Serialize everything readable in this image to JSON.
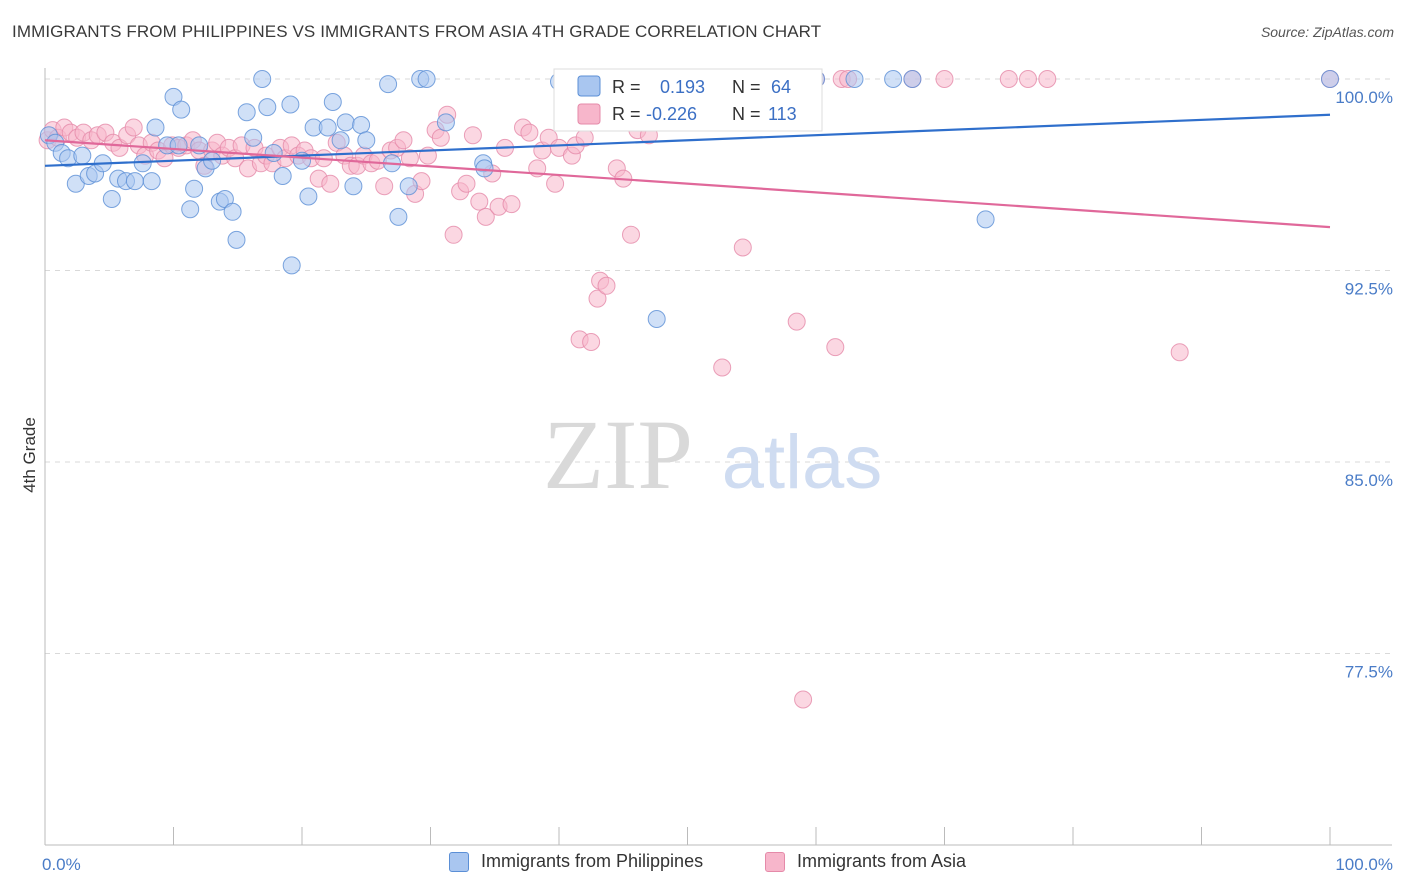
{
  "title": "IMMIGRANTS FROM PHILIPPINES VS IMMIGRANTS FROM ASIA 4TH GRADE CORRELATION CHART",
  "source": "Source: ZipAtlas.com",
  "watermark": {
    "zip": "ZIP",
    "atlas": "atlas"
  },
  "colors": {
    "blue_fill": "#a9c6f0",
    "blue_stroke": "#5b8fd6",
    "blue_line": "#2f6fcc",
    "pink_fill": "#f7b6cb",
    "pink_stroke": "#e58aa9",
    "pink_line": "#e0689a",
    "grid": "#d9d9d9",
    "tick_text": "#4a7cc7"
  },
  "legend": {
    "row1": {
      "r_label": "R =",
      "r_value": "0.193",
      "n_label": "N =",
      "n_value": "64"
    },
    "row2": {
      "r_label": "R =",
      "r_value": "-0.226",
      "n_label": "N =",
      "n_value": "113"
    }
  },
  "bottom_legend": {
    "blue": "Immigrants from Philippines",
    "pink": "Immigrants from Asia"
  },
  "chart_data": {
    "type": "scatter",
    "title": "IMMIGRANTS FROM PHILIPPINES VS IMMIGRANTS FROM ASIA 4TH GRADE CORRELATION CHART",
    "xlabel": "",
    "ylabel": "4th Grade",
    "xlim": [
      0,
      100
    ],
    "ylim": [
      70.0,
      100.7
    ],
    "x_tick_labels": [
      "0.0%",
      "100.0%"
    ],
    "y_ticks": [
      77.5,
      85.0,
      92.5,
      100.0
    ],
    "y_tick_labels": [
      "77.5%",
      "85.0%",
      "92.5%",
      "100.0%"
    ],
    "grid": "horizontal dashed",
    "legend_position": "top-center",
    "series": [
      {
        "name": "Immigrants from Philippines",
        "color": "#a9c6f0",
        "trend": {
          "x": [
            0,
            100
          ],
          "y": [
            96.6,
            98.6
          ]
        },
        "points": [
          [
            0.3,
            97.8
          ],
          [
            0.8,
            97.5
          ],
          [
            1.3,
            97.1
          ],
          [
            1.8,
            96.9
          ],
          [
            2.4,
            95.9
          ],
          [
            2.9,
            97.0
          ],
          [
            3.4,
            96.2
          ],
          [
            3.9,
            96.3
          ],
          [
            4.5,
            96.7
          ],
          [
            5.2,
            95.3
          ],
          [
            5.7,
            96.1
          ],
          [
            6.3,
            96.0
          ],
          [
            7.0,
            96.0
          ],
          [
            7.6,
            96.7
          ],
          [
            8.3,
            96.0
          ],
          [
            8.6,
            98.1
          ],
          [
            9.5,
            97.4
          ],
          [
            10.0,
            99.3
          ],
          [
            10.4,
            97.4
          ],
          [
            10.6,
            98.8
          ],
          [
            11.3,
            94.9
          ],
          [
            11.6,
            95.7
          ],
          [
            12.0,
            97.4
          ],
          [
            12.5,
            96.5
          ],
          [
            13.0,
            96.8
          ],
          [
            13.6,
            95.2
          ],
          [
            14.0,
            95.3
          ],
          [
            14.6,
            94.8
          ],
          [
            14.9,
            93.7
          ],
          [
            15.7,
            98.7
          ],
          [
            16.2,
            97.7
          ],
          [
            16.9,
            100.0
          ],
          [
            17.3,
            98.9
          ],
          [
            17.8,
            97.1
          ],
          [
            18.5,
            96.2
          ],
          [
            19.1,
            99.0
          ],
          [
            19.2,
            92.7
          ],
          [
            20.0,
            96.8
          ],
          [
            20.5,
            95.4
          ],
          [
            20.9,
            98.1
          ],
          [
            22.0,
            98.1
          ],
          [
            22.4,
            99.1
          ],
          [
            23.0,
            97.6
          ],
          [
            23.4,
            98.3
          ],
          [
            24.0,
            95.8
          ],
          [
            24.6,
            98.2
          ],
          [
            25.0,
            97.6
          ],
          [
            26.7,
            99.8
          ],
          [
            27.0,
            96.7
          ],
          [
            27.5,
            94.6
          ],
          [
            28.3,
            95.8
          ],
          [
            29.2,
            100.0
          ],
          [
            29.7,
            100.0
          ],
          [
            31.2,
            98.3
          ],
          [
            34.1,
            96.7
          ],
          [
            34.2,
            96.5
          ],
          [
            47.6,
            90.6
          ],
          [
            60.0,
            100.0
          ],
          [
            63.0,
            100.0
          ],
          [
            66.0,
            100.0
          ],
          [
            67.5,
            100.0
          ],
          [
            73.2,
            94.5
          ],
          [
            100.0,
            100.0
          ],
          [
            40.0,
            99.9
          ]
        ]
      },
      {
        "name": "Immigrants from Asia",
        "color": "#f7b6cb",
        "trend": {
          "x": [
            0,
            100
          ],
          "y": [
            97.6,
            94.2
          ]
        },
        "points": [
          [
            0.2,
            97.6
          ],
          [
            0.6,
            98.0
          ],
          [
            1.0,
            97.7
          ],
          [
            1.5,
            98.1
          ],
          [
            2.0,
            97.9
          ],
          [
            2.5,
            97.7
          ],
          [
            3.0,
            97.9
          ],
          [
            3.6,
            97.6
          ],
          [
            4.1,
            97.8
          ],
          [
            4.7,
            97.9
          ],
          [
            5.3,
            97.5
          ],
          [
            5.8,
            97.3
          ],
          [
            6.4,
            97.8
          ],
          [
            6.9,
            98.1
          ],
          [
            7.3,
            97.4
          ],
          [
            7.8,
            97.0
          ],
          [
            8.3,
            97.5
          ],
          [
            8.8,
            97.2
          ],
          [
            9.3,
            96.9
          ],
          [
            9.9,
            97.4
          ],
          [
            10.4,
            97.3
          ],
          [
            11.0,
            97.4
          ],
          [
            11.5,
            97.6
          ],
          [
            12.0,
            97.2
          ],
          [
            12.4,
            96.6
          ],
          [
            13.0,
            97.2
          ],
          [
            13.4,
            97.5
          ],
          [
            13.8,
            97.0
          ],
          [
            14.3,
            97.3
          ],
          [
            14.8,
            96.9
          ],
          [
            15.3,
            97.4
          ],
          [
            15.8,
            96.5
          ],
          [
            16.3,
            97.3
          ],
          [
            16.8,
            96.7
          ],
          [
            17.2,
            97.0
          ],
          [
            17.7,
            96.7
          ],
          [
            18.3,
            97.3
          ],
          [
            18.7,
            96.9
          ],
          [
            19.2,
            97.4
          ],
          [
            19.7,
            97.0
          ],
          [
            20.2,
            97.2
          ],
          [
            20.7,
            96.9
          ],
          [
            21.3,
            96.1
          ],
          [
            21.7,
            96.9
          ],
          [
            22.2,
            95.9
          ],
          [
            22.7,
            97.5
          ],
          [
            23.3,
            97.0
          ],
          [
            23.8,
            96.6
          ],
          [
            24.3,
            96.6
          ],
          [
            24.8,
            97.0
          ],
          [
            25.4,
            96.7
          ],
          [
            25.9,
            96.8
          ],
          [
            26.4,
            95.8
          ],
          [
            26.9,
            97.2
          ],
          [
            27.4,
            97.3
          ],
          [
            27.9,
            97.6
          ],
          [
            28.4,
            96.9
          ],
          [
            28.8,
            95.5
          ],
          [
            29.3,
            96.0
          ],
          [
            29.8,
            97.0
          ],
          [
            30.4,
            98.0
          ],
          [
            30.8,
            97.7
          ],
          [
            31.3,
            98.6
          ],
          [
            31.8,
            93.9
          ],
          [
            32.3,
            95.6
          ],
          [
            32.8,
            95.9
          ],
          [
            33.3,
            97.8
          ],
          [
            33.8,
            95.2
          ],
          [
            34.3,
            94.6
          ],
          [
            34.8,
            96.3
          ],
          [
            35.3,
            95.0
          ],
          [
            35.8,
            97.3
          ],
          [
            36.3,
            95.1
          ],
          [
            37.2,
            98.1
          ],
          [
            37.7,
            97.9
          ],
          [
            38.3,
            96.5
          ],
          [
            38.7,
            97.2
          ],
          [
            39.2,
            97.7
          ],
          [
            39.7,
            95.9
          ],
          [
            40.0,
            97.3
          ],
          [
            41.0,
            97.0
          ],
          [
            41.3,
            97.4
          ],
          [
            41.6,
            89.8
          ],
          [
            42.0,
            97.7
          ],
          [
            42.5,
            89.7
          ],
          [
            43.0,
            91.4
          ],
          [
            43.2,
            92.1
          ],
          [
            43.7,
            91.9
          ],
          [
            44.5,
            96.5
          ],
          [
            45.0,
            96.1
          ],
          [
            45.6,
            93.9
          ],
          [
            46.1,
            98.0
          ],
          [
            47.0,
            97.8
          ],
          [
            47.8,
            100.0
          ],
          [
            48.5,
            99.5
          ],
          [
            52.0,
            100.0
          ],
          [
            52.7,
            88.7
          ],
          [
            53.8,
            100.0
          ],
          [
            54.3,
            93.4
          ],
          [
            57.0,
            100.0
          ],
          [
            58.5,
            90.5
          ],
          [
            60.0,
            100.0
          ],
          [
            61.5,
            89.5
          ],
          [
            62.0,
            100.0
          ],
          [
            62.5,
            100.0
          ],
          [
            67.5,
            100.0
          ],
          [
            70.0,
            100.0
          ],
          [
            75.0,
            100.0
          ],
          [
            76.5,
            100.0
          ],
          [
            78.0,
            100.0
          ],
          [
            88.3,
            89.3
          ],
          [
            100.0,
            100.0
          ],
          [
            59.0,
            75.7
          ]
        ]
      }
    ]
  }
}
